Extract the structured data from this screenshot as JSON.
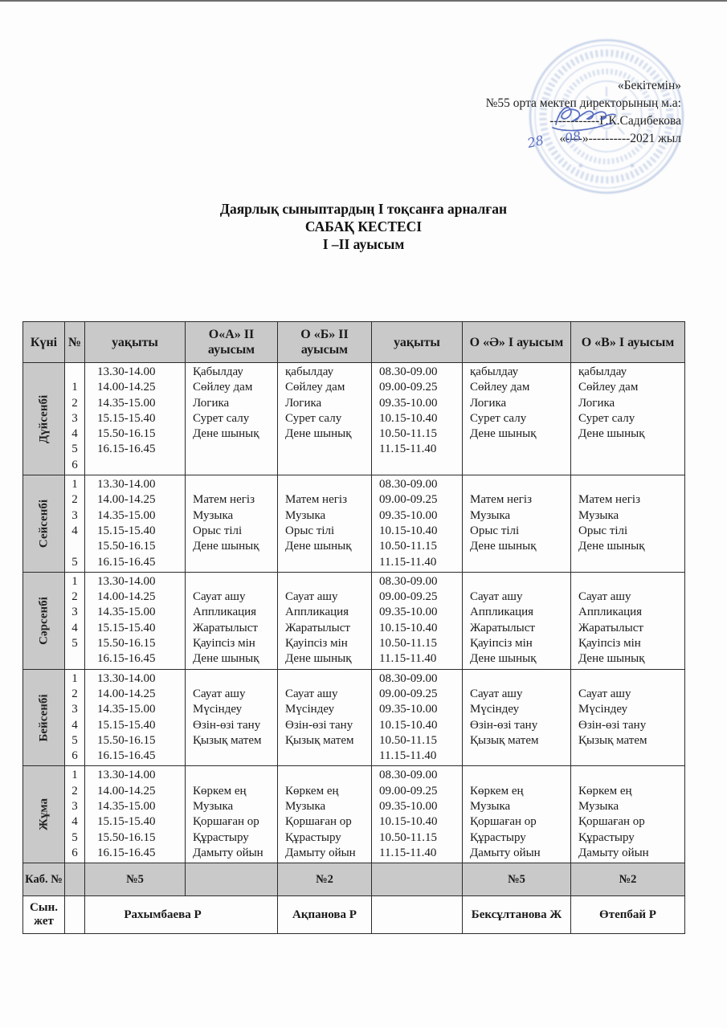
{
  "approval": {
    "approved_label": "«Бекітемін»",
    "director_line": "№55 орта мектеп директорының м.а:",
    "signature_line": "------------Г.К.Садибекова",
    "date_line": "«----»----------2021 жыл",
    "handwritten_day": "28",
    "handwritten_month": "08"
  },
  "title": {
    "line1": "Даярлық сыныптардың І тоқсанға арналған",
    "line2": "САБАҚ КЕСТЕСІ",
    "line3": "І –ІІ ауысым"
  },
  "colors": {
    "stamp": "#7d99cf",
    "ink": "#3c55b8",
    "header_fill": "#c9c9c9"
  },
  "table": {
    "headers": [
      "Күні",
      "№",
      "уақыты",
      "О«А» ІІ ауысым",
      "О «Б» ІІ ауысым",
      "уақыты",
      "О «Ә» І ауысым",
      "О «В» І ауысым"
    ],
    "days": [
      {
        "name": "Дүйсенбі",
        "nums": [
          "",
          "1",
          "2",
          "3",
          "4",
          "5",
          "6"
        ],
        "times1": [
          "13.30-14.00",
          "14.00-14.25",
          "14.35-15.00",
          "15.15-15.40",
          "15.50-16.15",
          "16.15-16.45"
        ],
        "subjects_a": [
          "Қабылдау",
          "Сөйлеу дам",
          "Логика",
          "Сурет салу",
          "Дене шынық"
        ],
        "subjects_b": [
          "қабылдау",
          "Сөйлеу дам",
          "Логика",
          "Сурет салу",
          "Дене шынық"
        ],
        "times2": [
          "08.30-09.00",
          "09.00-09.25",
          "09.35-10.00",
          "10.15-10.40",
          "10.50-11.15",
          "11.15-11.40"
        ],
        "subjects_a2": [
          "қабылдау",
          "Сөйлеу дам",
          "Логика",
          "Сурет салу",
          "Дене шынық"
        ],
        "subjects_v": [
          "қабылдау",
          "Сөйлеу дам",
          "Логика",
          "Сурет салу",
          "Дене шынық"
        ]
      },
      {
        "name": "Сейсенбі",
        "nums": [
          "1",
          "2",
          "3",
          "4",
          "",
          "5"
        ],
        "times1": [
          "13.30-14.00",
          "14.00-14.25",
          "14.35-15.00",
          "15.15-15.40",
          "15.50-16.15",
          "16.15-16.45"
        ],
        "subjects_a": [
          "",
          "Матем негіз",
          "Музыка",
          "Орыс тілі",
          "Дене шынық"
        ],
        "subjects_b": [
          "",
          "Матем негіз",
          "Музыка",
          "Орыс тілі",
          "Дене шынық"
        ],
        "times2": [
          "08.30-09.00",
          "09.00-09.25",
          "09.35-10.00",
          "10.15-10.40",
          "10.50-11.15",
          "11.15-11.40"
        ],
        "subjects_a2": [
          "",
          "Матем негіз",
          "Музыка",
          "Орыс тілі",
          "Дене шынық"
        ],
        "subjects_v": [
          "",
          "Матем негіз",
          "Музыка",
          "Орыс тілі",
          "Дене шынық"
        ]
      },
      {
        "name": "Сәрсенбі",
        "nums": [
          "1",
          "2",
          "3",
          "4",
          "5",
          ""
        ],
        "times1": [
          "13.30-14.00",
          "14.00-14.25",
          "14.35-15.00",
          "15.15-15.40",
          "15.50-16.15",
          "16.15-16.45"
        ],
        "subjects_a": [
          "",
          "Сауат ашу",
          "Аппликация",
          "Жаратылыст",
          "Қауіпсіз мін",
          "Дене шынық"
        ],
        "subjects_b": [
          "",
          "Сауат ашу",
          "Аппликация",
          "Жаратылыст",
          "Қауіпсіз мін",
          "Дене шынық"
        ],
        "times2": [
          "08.30-09.00",
          "09.00-09.25",
          "09.35-10.00",
          "10.15-10.40",
          "10.50-11.15",
          "11.15-11.40"
        ],
        "subjects_a2": [
          "",
          "Сауат ашу",
          "Аппликация",
          "Жаратылыст",
          "Қауіпсіз мін",
          "Дене шынық"
        ],
        "subjects_v": [
          "",
          "Сауат ашу",
          "Аппликация",
          "Жаратылыст",
          "Қауіпсіз мін",
          "Дене шынық"
        ]
      },
      {
        "name": "Бейсенбі",
        "nums": [
          "1",
          "2",
          "3",
          "4",
          "5",
          "6"
        ],
        "times1": [
          "13.30-14.00",
          "14.00-14.25",
          "14.35-15.00",
          "15.15-15.40",
          "15.50-16.15",
          "16.15-16.45"
        ],
        "subjects_a": [
          "",
          "Сауат ашу",
          "Мүсіндеу",
          "Өзін-өзі тану",
          "Қызық матем"
        ],
        "subjects_b": [
          "",
          "Сауат ашу",
          "Мүсіндеу",
          "Өзін-өзі тану",
          "Қызық матем"
        ],
        "times2": [
          "08.30-09.00",
          "09.00-09.25",
          "09.35-10.00",
          "10.15-10.40",
          "10.50-11.15",
          "11.15-11.40"
        ],
        "subjects_a2": [
          "",
          "Сауат ашу",
          "Мүсіндеу",
          "Өзін-өзі тану",
          "Қызық матем"
        ],
        "subjects_v": [
          "",
          "Сауат ашу",
          "Мүсіндеу",
          "Өзін-өзі тану",
          "Қызық матем"
        ]
      },
      {
        "name": "Жұма",
        "nums": [
          "1",
          "2",
          "3",
          "4",
          "5",
          "6"
        ],
        "times1": [
          "13.30-14.00",
          "14.00-14.25",
          "14.35-15.00",
          "15.15-15.40",
          "15.50-16.15",
          "16.15-16.45"
        ],
        "subjects_a": [
          "",
          "Көркем ең",
          "Музыка",
          "Қоршаған ор",
          "Құрастыру",
          "Дамыту ойын"
        ],
        "subjects_b": [
          "",
          "Көркем ең",
          "Музыка",
          "Қоршаған ор",
          "Құрастыру",
          "Дамыту ойын"
        ],
        "times2": [
          "08.30-09.00",
          "09.00-09.25",
          "09.35-10.00",
          "10.15-10.40",
          "10.50-11.15",
          "11.15-11.40"
        ],
        "subjects_a2": [
          "",
          "Көркем ең",
          "Музыка",
          "Қоршаған ор",
          "Құрастыру",
          "Дамыту ойын"
        ],
        "subjects_v": [
          "",
          "Көркем ең",
          "Музыка",
          "Қоршаған ор",
          "Құрастыру",
          "Дамыту ойын"
        ]
      }
    ],
    "footer": {
      "cab_label": "Каб. №",
      "cab_no5_left": "№5",
      "cab_no2_left": "№2",
      "cab_no5_right": "№5",
      "cab_no2_right": "№2",
      "syn_label": "Сын. жет",
      "teacher_ab": "Рахымбаева Р",
      "teacher_b": "Ақпанова Р",
      "teacher_a2": "Бексұлтанова Ж",
      "teacher_v": "Өтепбай Р"
    }
  }
}
